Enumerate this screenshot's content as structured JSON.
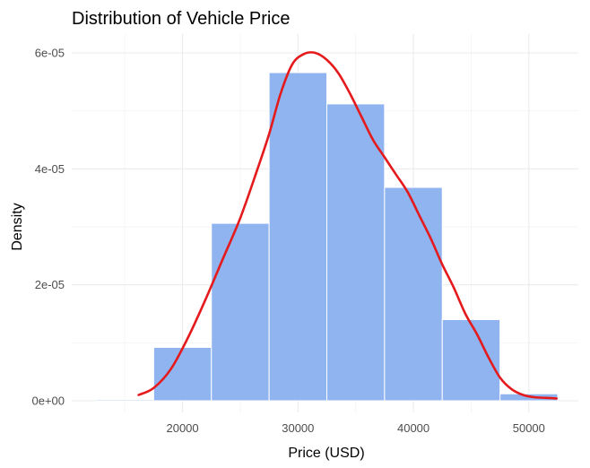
{
  "chart_data": {
    "type": "bar",
    "title": "Distribution of Vehicle Price",
    "xlabel": "Price (USD)",
    "ylabel": "Density",
    "xlim": [
      12500,
      52500
    ],
    "ylim": [
      0,
      6e-05
    ],
    "x_ticks": [
      20000,
      30000,
      40000,
      50000
    ],
    "x_tick_labels": [
      "20000",
      "30000",
      "40000",
      "50000"
    ],
    "y_ticks": [
      0,
      2e-05,
      4e-05,
      6e-05
    ],
    "y_tick_labels": [
      "0e+00",
      "2e-05",
      "4e-05",
      "6e-05"
    ],
    "bin_width": 5000,
    "bins": [
      {
        "start": 12500,
        "end": 17500,
        "density": 2e-07
      },
      {
        "start": 17500,
        "end": 22500,
        "density": 9.2e-06
      },
      {
        "start": 22500,
        "end": 27500,
        "density": 3.06e-05
      },
      {
        "start": 27500,
        "end": 32500,
        "density": 5.66e-05
      },
      {
        "start": 32500,
        "end": 37500,
        "density": 5.12e-05
      },
      {
        "start": 37500,
        "end": 42500,
        "density": 3.68e-05
      },
      {
        "start": 42500,
        "end": 47500,
        "density": 1.4e-05
      },
      {
        "start": 47500,
        "end": 52500,
        "density": 1.2e-06
      }
    ],
    "density_curve": {
      "x": [
        16200,
        17500,
        19000,
        20500,
        22000,
        23500,
        25000,
        26500,
        27500,
        28500,
        29500,
        30500,
        31500,
        32500,
        33500,
        34500,
        35500,
        36500,
        37500,
        38500,
        39500,
        40500,
        41500,
        42500,
        43500,
        44500,
        45500,
        46500,
        47500,
        48500,
        49500,
        50500,
        51500,
        52400
      ],
      "y": [
        1e-06,
        2.2e-06,
        5.5e-06,
        1.1e-05,
        1.75e-05,
        2.45e-05,
        3.15e-05,
        4e-05,
        4.6e-05,
        5.3e-05,
        5.8e-05,
        5.98e-05,
        6e-05,
        5.88e-05,
        5.65e-05,
        5.3e-05,
        4.9e-05,
        4.5e-05,
        4.2e-05,
        3.9e-05,
        3.6e-05,
        3.2e-05,
        2.8e-05,
        2.35e-05,
        1.95e-05,
        1.5e-05,
        1.15e-05,
        7.5e-06,
        4e-06,
        2e-06,
        1e-06,
        6e-07,
        5e-07,
        4e-07
      ]
    },
    "bar_color": "#8ab0ee",
    "curve_color": "#e41a1c",
    "grid": true
  }
}
